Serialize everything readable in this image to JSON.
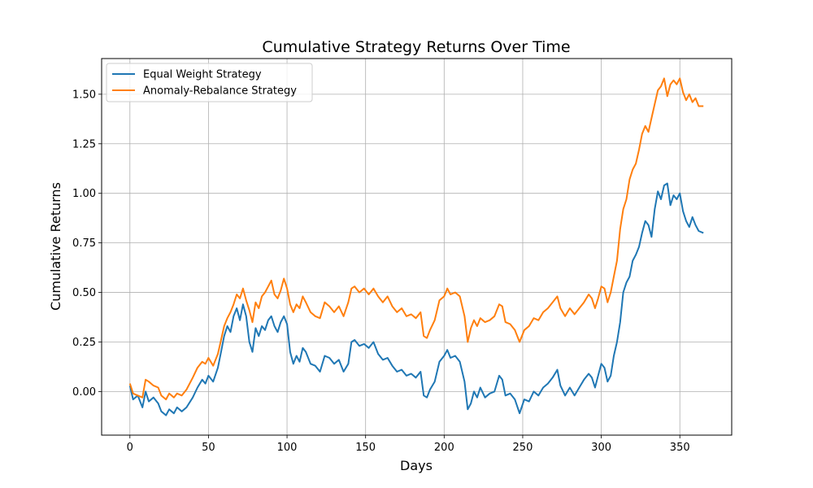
{
  "chart_data": {
    "type": "line",
    "title": "Cumulative Strategy Returns Over Time",
    "xlabel": "Days",
    "ylabel": "Cumulative Returns",
    "xlim": [
      -18,
      383
    ],
    "ylim": [
      -0.22,
      1.68
    ],
    "xticks": [
      0,
      50,
      100,
      150,
      200,
      250,
      300,
      350
    ],
    "yticks": [
      0.0,
      0.25,
      0.5,
      0.75,
      1.0,
      1.25,
      1.5
    ],
    "ytick_labels": [
      "0.00",
      "0.25",
      "0.50",
      "0.75",
      "1.00",
      "1.25",
      "1.50"
    ],
    "grid": true,
    "legend_position": "upper-left",
    "series": [
      {
        "name": "Equal Weight Strategy",
        "color": "#1f77b4",
        "points": [
          [
            0,
            0.03
          ],
          [
            2,
            -0.04
          ],
          [
            5,
            -0.02
          ],
          [
            8,
            -0.08
          ],
          [
            10,
            0.0
          ],
          [
            12,
            -0.05
          ],
          [
            15,
            -0.03
          ],
          [
            18,
            -0.06
          ],
          [
            20,
            -0.1
          ],
          [
            23,
            -0.12
          ],
          [
            25,
            -0.09
          ],
          [
            28,
            -0.11
          ],
          [
            30,
            -0.08
          ],
          [
            33,
            -0.1
          ],
          [
            36,
            -0.08
          ],
          [
            40,
            -0.03
          ],
          [
            43,
            0.02
          ],
          [
            46,
            0.06
          ],
          [
            48,
            0.04
          ],
          [
            50,
            0.08
          ],
          [
            53,
            0.05
          ],
          [
            56,
            0.12
          ],
          [
            58,
            0.2
          ],
          [
            60,
            0.28
          ],
          [
            62,
            0.33
          ],
          [
            64,
            0.3
          ],
          [
            66,
            0.38
          ],
          [
            68,
            0.42
          ],
          [
            70,
            0.36
          ],
          [
            72,
            0.44
          ],
          [
            74,
            0.38
          ],
          [
            76,
            0.25
          ],
          [
            78,
            0.2
          ],
          [
            80,
            0.32
          ],
          [
            82,
            0.28
          ],
          [
            84,
            0.33
          ],
          [
            86,
            0.31
          ],
          [
            88,
            0.36
          ],
          [
            90,
            0.38
          ],
          [
            92,
            0.33
          ],
          [
            94,
            0.3
          ],
          [
            96,
            0.35
          ],
          [
            98,
            0.38
          ],
          [
            100,
            0.34
          ],
          [
            102,
            0.2
          ],
          [
            104,
            0.14
          ],
          [
            106,
            0.18
          ],
          [
            108,
            0.15
          ],
          [
            110,
            0.22
          ],
          [
            112,
            0.2
          ],
          [
            115,
            0.14
          ],
          [
            118,
            0.13
          ],
          [
            121,
            0.1
          ],
          [
            124,
            0.18
          ],
          [
            127,
            0.17
          ],
          [
            130,
            0.14
          ],
          [
            133,
            0.16
          ],
          [
            136,
            0.1
          ],
          [
            139,
            0.14
          ],
          [
            141,
            0.25
          ],
          [
            143,
            0.26
          ],
          [
            146,
            0.23
          ],
          [
            149,
            0.24
          ],
          [
            152,
            0.22
          ],
          [
            155,
            0.25
          ],
          [
            158,
            0.19
          ],
          [
            161,
            0.16
          ],
          [
            164,
            0.17
          ],
          [
            167,
            0.13
          ],
          [
            170,
            0.1
          ],
          [
            173,
            0.11
          ],
          [
            176,
            0.08
          ],
          [
            179,
            0.09
          ],
          [
            182,
            0.07
          ],
          [
            185,
            0.1
          ],
          [
            187,
            -0.02
          ],
          [
            189,
            -0.03
          ],
          [
            191,
            0.01
          ],
          [
            194,
            0.05
          ],
          [
            197,
            0.15
          ],
          [
            200,
            0.18
          ],
          [
            202,
            0.21
          ],
          [
            204,
            0.17
          ],
          [
            207,
            0.18
          ],
          [
            210,
            0.15
          ],
          [
            213,
            0.05
          ],
          [
            215,
            -0.09
          ],
          [
            217,
            -0.06
          ],
          [
            219,
            0.0
          ],
          [
            221,
            -0.03
          ],
          [
            223,
            0.02
          ],
          [
            226,
            -0.03
          ],
          [
            229,
            -0.01
          ],
          [
            232,
            0.0
          ],
          [
            235,
            0.08
          ],
          [
            237,
            0.06
          ],
          [
            239,
            -0.02
          ],
          [
            242,
            -0.01
          ],
          [
            245,
            -0.04
          ],
          [
            248,
            -0.11
          ],
          [
            251,
            -0.04
          ],
          [
            254,
            -0.05
          ],
          [
            257,
            0.0
          ],
          [
            260,
            -0.02
          ],
          [
            263,
            0.02
          ],
          [
            266,
            0.04
          ],
          [
            269,
            0.07
          ],
          [
            272,
            0.11
          ],
          [
            274,
            0.03
          ],
          [
            277,
            -0.02
          ],
          [
            280,
            0.02
          ],
          [
            283,
            -0.02
          ],
          [
            286,
            0.02
          ],
          [
            289,
            0.06
          ],
          [
            292,
            0.09
          ],
          [
            294,
            0.07
          ],
          [
            296,
            0.02
          ],
          [
            298,
            0.08
          ],
          [
            300,
            0.14
          ],
          [
            302,
            0.12
          ],
          [
            304,
            0.05
          ],
          [
            306,
            0.08
          ],
          [
            308,
            0.18
          ],
          [
            310,
            0.25
          ],
          [
            312,
            0.35
          ],
          [
            314,
            0.5
          ],
          [
            316,
            0.55
          ],
          [
            318,
            0.58
          ],
          [
            320,
            0.66
          ],
          [
            322,
            0.69
          ],
          [
            324,
            0.73
          ],
          [
            326,
            0.8
          ],
          [
            328,
            0.86
          ],
          [
            330,
            0.84
          ],
          [
            332,
            0.78
          ],
          [
            334,
            0.92
          ],
          [
            336,
            1.01
          ],
          [
            338,
            0.97
          ],
          [
            340,
            1.04
          ],
          [
            342,
            1.05
          ],
          [
            344,
            0.94
          ],
          [
            346,
            0.99
          ],
          [
            348,
            0.97
          ],
          [
            350,
            1.0
          ],
          [
            352,
            0.91
          ],
          [
            354,
            0.86
          ],
          [
            356,
            0.83
          ],
          [
            358,
            0.88
          ],
          [
            360,
            0.84
          ],
          [
            362,
            0.81
          ],
          [
            365,
            0.8
          ]
        ]
      },
      {
        "name": "Anomaly-Rebalance Strategy",
        "color": "#ff7f0e",
        "points": [
          [
            0,
            0.04
          ],
          [
            2,
            -0.01
          ],
          [
            5,
            -0.02
          ],
          [
            8,
            -0.03
          ],
          [
            10,
            0.06
          ],
          [
            12,
            0.05
          ],
          [
            15,
            0.03
          ],
          [
            18,
            0.02
          ],
          [
            20,
            -0.02
          ],
          [
            23,
            -0.04
          ],
          [
            25,
            -0.01
          ],
          [
            28,
            -0.03
          ],
          [
            30,
            -0.01
          ],
          [
            33,
            -0.02
          ],
          [
            36,
            0.01
          ],
          [
            40,
            0.07
          ],
          [
            43,
            0.12
          ],
          [
            46,
            0.15
          ],
          [
            48,
            0.14
          ],
          [
            50,
            0.17
          ],
          [
            53,
            0.13
          ],
          [
            56,
            0.19
          ],
          [
            58,
            0.26
          ],
          [
            60,
            0.33
          ],
          [
            62,
            0.37
          ],
          [
            64,
            0.4
          ],
          [
            66,
            0.44
          ],
          [
            68,
            0.49
          ],
          [
            70,
            0.47
          ],
          [
            72,
            0.52
          ],
          [
            74,
            0.46
          ],
          [
            76,
            0.41
          ],
          [
            78,
            0.35
          ],
          [
            80,
            0.45
          ],
          [
            82,
            0.42
          ],
          [
            84,
            0.48
          ],
          [
            86,
            0.5
          ],
          [
            88,
            0.53
          ],
          [
            90,
            0.56
          ],
          [
            92,
            0.49
          ],
          [
            94,
            0.47
          ],
          [
            96,
            0.51
          ],
          [
            98,
            0.57
          ],
          [
            100,
            0.52
          ],
          [
            102,
            0.44
          ],
          [
            104,
            0.4
          ],
          [
            106,
            0.44
          ],
          [
            108,
            0.42
          ],
          [
            110,
            0.48
          ],
          [
            112,
            0.45
          ],
          [
            115,
            0.4
          ],
          [
            118,
            0.38
          ],
          [
            121,
            0.37
          ],
          [
            124,
            0.45
          ],
          [
            127,
            0.43
          ],
          [
            130,
            0.4
          ],
          [
            133,
            0.43
          ],
          [
            136,
            0.38
          ],
          [
            139,
            0.45
          ],
          [
            141,
            0.52
          ],
          [
            143,
            0.53
          ],
          [
            146,
            0.5
          ],
          [
            149,
            0.52
          ],
          [
            152,
            0.49
          ],
          [
            155,
            0.52
          ],
          [
            158,
            0.48
          ],
          [
            161,
            0.45
          ],
          [
            164,
            0.48
          ],
          [
            167,
            0.43
          ],
          [
            170,
            0.4
          ],
          [
            173,
            0.42
          ],
          [
            176,
            0.38
          ],
          [
            179,
            0.39
          ],
          [
            182,
            0.37
          ],
          [
            185,
            0.4
          ],
          [
            187,
            0.28
          ],
          [
            189,
            0.27
          ],
          [
            191,
            0.31
          ],
          [
            194,
            0.36
          ],
          [
            197,
            0.46
          ],
          [
            200,
            0.48
          ],
          [
            202,
            0.52
          ],
          [
            204,
            0.49
          ],
          [
            207,
            0.5
          ],
          [
            210,
            0.48
          ],
          [
            213,
            0.38
          ],
          [
            215,
            0.25
          ],
          [
            217,
            0.32
          ],
          [
            219,
            0.36
          ],
          [
            221,
            0.33
          ],
          [
            223,
            0.37
          ],
          [
            226,
            0.35
          ],
          [
            229,
            0.36
          ],
          [
            232,
            0.38
          ],
          [
            235,
            0.44
          ],
          [
            237,
            0.43
          ],
          [
            239,
            0.35
          ],
          [
            242,
            0.34
          ],
          [
            245,
            0.31
          ],
          [
            248,
            0.25
          ],
          [
            251,
            0.31
          ],
          [
            254,
            0.33
          ],
          [
            257,
            0.37
          ],
          [
            260,
            0.36
          ],
          [
            263,
            0.4
          ],
          [
            266,
            0.42
          ],
          [
            269,
            0.45
          ],
          [
            272,
            0.48
          ],
          [
            274,
            0.42
          ],
          [
            277,
            0.38
          ],
          [
            280,
            0.42
          ],
          [
            283,
            0.39
          ],
          [
            286,
            0.42
          ],
          [
            289,
            0.45
          ],
          [
            292,
            0.49
          ],
          [
            294,
            0.47
          ],
          [
            296,
            0.42
          ],
          [
            298,
            0.47
          ],
          [
            300,
            0.53
          ],
          [
            302,
            0.52
          ],
          [
            304,
            0.45
          ],
          [
            306,
            0.5
          ],
          [
            308,
            0.58
          ],
          [
            310,
            0.66
          ],
          [
            312,
            0.82
          ],
          [
            314,
            0.92
          ],
          [
            316,
            0.97
          ],
          [
            318,
            1.07
          ],
          [
            320,
            1.12
          ],
          [
            322,
            1.15
          ],
          [
            324,
            1.22
          ],
          [
            326,
            1.3
          ],
          [
            328,
            1.34
          ],
          [
            330,
            1.31
          ],
          [
            332,
            1.38
          ],
          [
            334,
            1.45
          ],
          [
            336,
            1.52
          ],
          [
            338,
            1.54
          ],
          [
            340,
            1.58
          ],
          [
            342,
            1.49
          ],
          [
            344,
            1.55
          ],
          [
            346,
            1.57
          ],
          [
            348,
            1.55
          ],
          [
            350,
            1.58
          ],
          [
            352,
            1.51
          ],
          [
            354,
            1.47
          ],
          [
            356,
            1.5
          ],
          [
            358,
            1.46
          ],
          [
            360,
            1.48
          ],
          [
            362,
            1.44
          ],
          [
            365,
            1.44
          ]
        ]
      }
    ]
  }
}
